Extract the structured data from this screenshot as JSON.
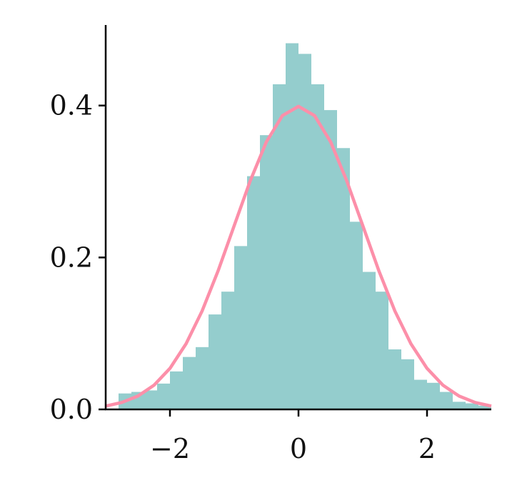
{
  "chart_data": {
    "type": "histogram",
    "bins": [
      -2.8,
      -2.6,
      -2.4,
      -2.2,
      -2.0,
      -1.8,
      -1.6,
      -1.4,
      -1.2,
      -1.0,
      -0.8,
      -0.6,
      -0.4,
      -0.2,
      0.0,
      0.2,
      0.4,
      0.6,
      0.8,
      1.0,
      1.2,
      1.4,
      1.6,
      1.8,
      2.0,
      2.2,
      2.4,
      2.6,
      2.8,
      3.0
    ],
    "values": [
      0.021,
      0.023,
      0.025,
      0.034,
      0.05,
      0.069,
      0.082,
      0.125,
      0.155,
      0.215,
      0.307,
      0.361,
      0.428,
      0.482,
      0.468,
      0.428,
      0.394,
      0.344,
      0.247,
      0.181,
      0.155,
      0.079,
      0.066,
      0.039,
      0.035,
      0.023,
      0.01,
      0.008,
      0.005
    ],
    "color": "#94cdcd",
    "overlay": {
      "type": "line",
      "color": "#fc8fa9",
      "x": [
        -3,
        -2.75,
        -2.5,
        -2.25,
        -2,
        -1.75,
        -1.5,
        -1.25,
        -1,
        -0.75,
        -0.5,
        -0.25,
        0,
        0.25,
        0.5,
        0.75,
        1,
        1.25,
        1.5,
        1.75,
        2,
        2.25,
        2.5,
        2.75,
        3
      ],
      "values": [
        0.0044,
        0.0091,
        0.0175,
        0.0317,
        0.054,
        0.0863,
        0.1295,
        0.1826,
        0.242,
        0.3011,
        0.3521,
        0.3867,
        0.3989,
        0.3867,
        0.3521,
        0.3011,
        0.242,
        0.1826,
        0.1295,
        0.0863,
        0.054,
        0.0317,
        0.0175,
        0.0091,
        0.0044
      ]
    },
    "xlim": [
      -3,
      3
    ],
    "ylim": [
      0,
      0.506
    ],
    "xticks": [
      {
        "value": -2,
        "label": "−2"
      },
      0,
      2
    ],
    "yticks": [
      {
        "value": 0,
        "label": "0.0"
      },
      0.2,
      0.4
    ]
  }
}
